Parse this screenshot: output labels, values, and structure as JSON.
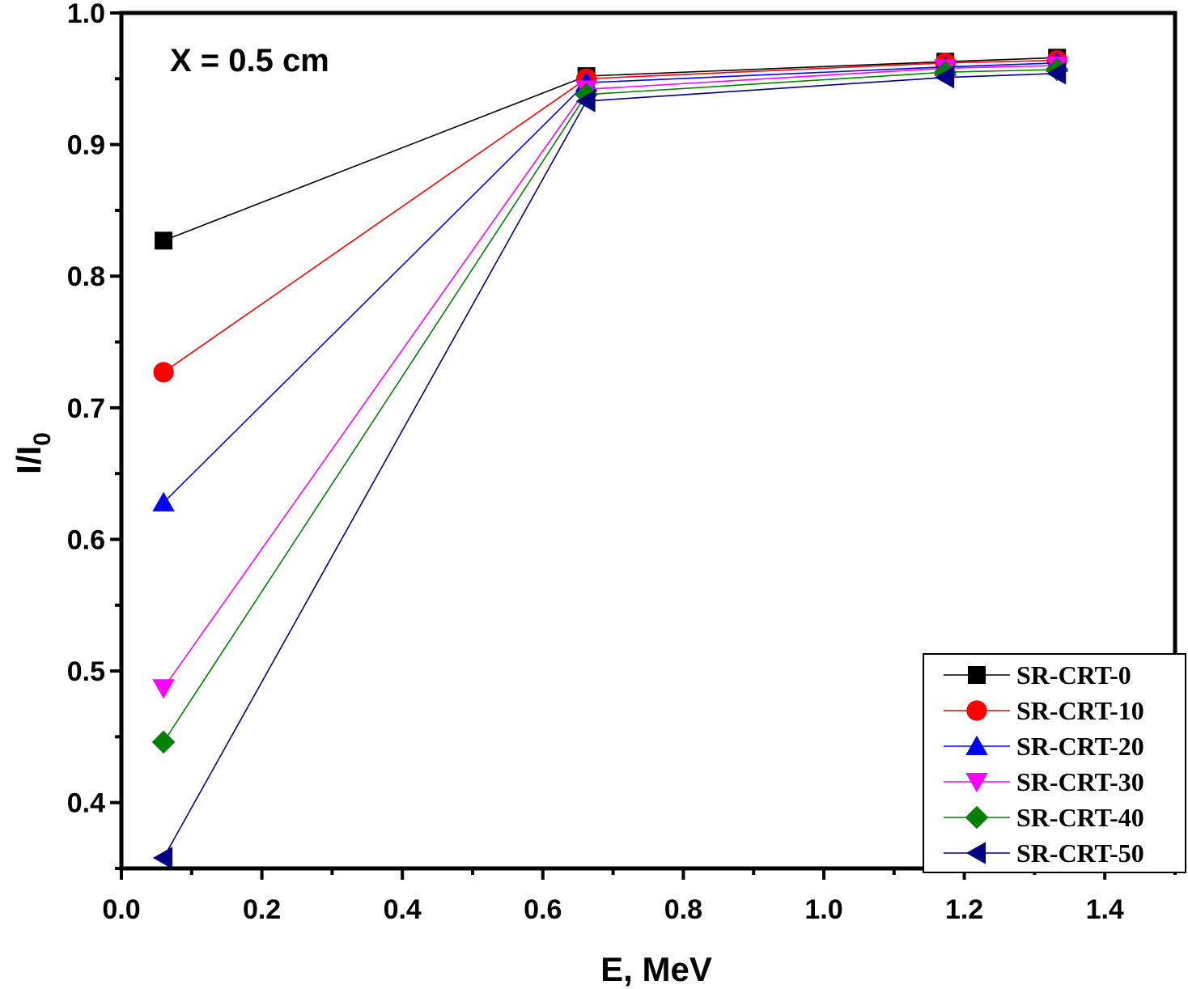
{
  "chart_data": {
    "type": "line",
    "title": "",
    "annotation": "X = 0.5 cm",
    "xlabel": "E, MeV",
    "ylabel_main": "I/I",
    "ylabel_sub": "0",
    "xlim": [
      0.0,
      1.5
    ],
    "ylim": [
      0.35,
      1.0
    ],
    "xticks": [
      "0.0",
      "0.2",
      "0.4",
      "0.6",
      "0.8",
      "1.0",
      "1.2",
      "1.4"
    ],
    "yticks": [
      "0.4",
      "0.5",
      "0.6",
      "0.7",
      "0.8",
      "0.9",
      "1.0"
    ],
    "x": [
      0.06,
      0.662,
      1.173,
      1.332
    ],
    "legend_position": "bottom-right",
    "series": [
      {
        "name": "SR-CRT-0",
        "color": "#000000",
        "marker": "square",
        "values": [
          0.827,
          0.952,
          0.963,
          0.966
        ]
      },
      {
        "name": "SR-CRT-10",
        "color": "#ff0000",
        "marker": "circle",
        "values": [
          0.727,
          0.95,
          0.962,
          0.964
        ]
      },
      {
        "name": "SR-CRT-20",
        "color": "#0000ff",
        "marker": "triangle-up",
        "values": [
          0.628,
          0.947,
          0.959,
          0.962
        ]
      },
      {
        "name": "SR-CRT-30",
        "color": "#ff00ff",
        "marker": "triangle-down",
        "values": [
          0.487,
          0.942,
          0.958,
          0.96
        ]
      },
      {
        "name": "SR-CRT-40",
        "color": "#008000",
        "marker": "diamond",
        "values": [
          0.446,
          0.938,
          0.955,
          0.957
        ]
      },
      {
        "name": "SR-CRT-50",
        "color": "#000080",
        "marker": "triangle-left",
        "values": [
          0.358,
          0.933,
          0.951,
          0.954
        ]
      }
    ]
  }
}
